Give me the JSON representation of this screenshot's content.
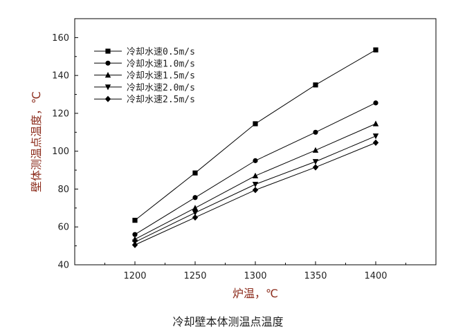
{
  "caption": "冷却壁本体测温点温度",
  "chart_data": {
    "type": "line",
    "xlabel": "炉温，℃",
    "ylabel": "壁体测温点温度，℃",
    "x": [
      1200,
      1250,
      1300,
      1350,
      1400
    ],
    "xlim": [
      1150,
      1450
    ],
    "ylim": [
      40,
      170
    ],
    "xticks": [
      1200,
      1250,
      1300,
      1350,
      1400
    ],
    "yticks": [
      40,
      60,
      80,
      100,
      120,
      140,
      160
    ],
    "grid": false,
    "legend_position": "top-left",
    "series": [
      {
        "name": "冷却水速0.5m/s",
        "marker": "square",
        "values": [
          63.5,
          88.5,
          114.5,
          135,
          153.5
        ]
      },
      {
        "name": "冷却水速1.0m/s",
        "marker": "circle",
        "values": [
          56,
          75.5,
          95,
          110,
          125.5
        ]
      },
      {
        "name": "冷却水速1.5m/s",
        "marker": "triangle-up",
        "values": [
          53.5,
          70,
          87,
          100.5,
          114.5
        ]
      },
      {
        "name": "冷却水速2.0m/s",
        "marker": "triangle-down",
        "values": [
          52,
          67.5,
          82.5,
          94.5,
          108
        ]
      },
      {
        "name": "冷却水速2.5m/s",
        "marker": "diamond",
        "values": [
          50.5,
          65,
          79.5,
          91.5,
          104.5
        ]
      }
    ],
    "line_color": "#000000",
    "title_color": "#8b2a1a"
  }
}
